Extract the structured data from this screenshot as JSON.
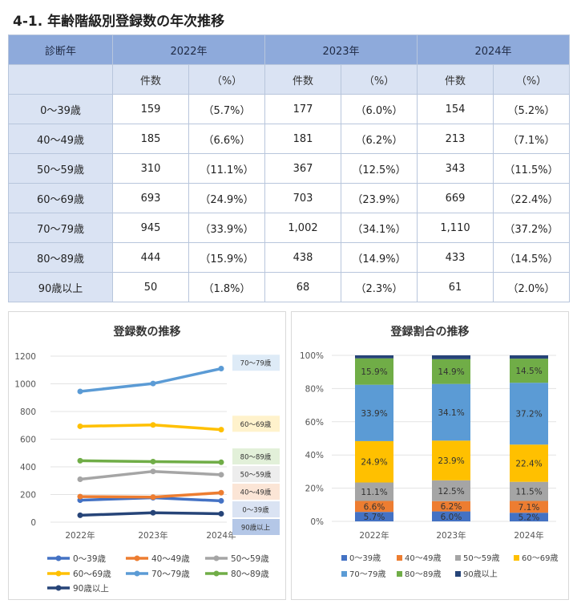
{
  "title": "4-1.  年齢階級別登録数の年次推移",
  "table": {
    "corner_label": "診断年",
    "years": [
      "2022年",
      "2023年",
      "2024年"
    ],
    "count_label": "件数",
    "pct_label": "（%）",
    "rows": [
      {
        "label": "0～39歳",
        "cells": [
          [
            "159",
            "（5.7%）"
          ],
          [
            "177",
            "（6.0%）"
          ],
          [
            "154",
            "（5.2%）"
          ]
        ]
      },
      {
        "label": "40～49歳",
        "cells": [
          [
            "185",
            "（6.6%）"
          ],
          [
            "181",
            "（6.2%）"
          ],
          [
            "213",
            "（7.1%）"
          ]
        ]
      },
      {
        "label": "50～59歳",
        "cells": [
          [
            "310",
            "（11.1%）"
          ],
          [
            "367",
            "（12.5%）"
          ],
          [
            "343",
            "（11.5%）"
          ]
        ]
      },
      {
        "label": "60～69歳",
        "cells": [
          [
            "693",
            "（24.9%）"
          ],
          [
            "703",
            "（23.9%）"
          ],
          [
            "669",
            "（22.4%）"
          ]
        ]
      },
      {
        "label": "70～79歳",
        "cells": [
          [
            "945",
            "（33.9%）"
          ],
          [
            "1,002",
            "（34.1%）"
          ],
          [
            "1,110",
            "（37.2%）"
          ]
        ]
      },
      {
        "label": "80～89歳",
        "cells": [
          [
            "444",
            "（15.9%）"
          ],
          [
            "438",
            "（14.9%）"
          ],
          [
            "433",
            "（14.5%）"
          ]
        ]
      },
      {
        "label": "90歳以上",
        "cells": [
          [
            "50",
            "（1.8%）"
          ],
          [
            "68",
            "（2.3%）"
          ],
          [
            "61",
            "（2.0%）"
          ]
        ]
      }
    ]
  },
  "chart_data": [
    {
      "type": "line",
      "title": "登録数の推移",
      "categories": [
        "2022年",
        "2023年",
        "2024年"
      ],
      "yticks": [
        "0",
        "200",
        "400",
        "600",
        "800",
        "1000",
        "1200"
      ],
      "ylim": [
        0,
        1200
      ],
      "series": [
        {
          "name": "0～39歳",
          "values": [
            159,
            177,
            154
          ],
          "color": "#4472c4",
          "end_label": "0～39歳",
          "label_bg": "#dae3f3"
        },
        {
          "name": "40～49歳",
          "values": [
            185,
            181,
            213
          ],
          "color": "#ed7d31",
          "end_label": "40～49歳",
          "label_bg": "#fbe5d6"
        },
        {
          "name": "50～59歳",
          "values": [
            310,
            367,
            343
          ],
          "color": "#a5a5a5",
          "end_label": "50～59歳",
          "label_bg": "#ededed"
        },
        {
          "name": "60～69歳",
          "values": [
            693,
            703,
            669
          ],
          "color": "#ffc000",
          "end_label": "60～69歳",
          "label_bg": "#fff2cc"
        },
        {
          "name": "70～79歳",
          "values": [
            945,
            1002,
            1110
          ],
          "color": "#5b9bd5",
          "end_label": "70～79歳",
          "label_bg": "#deebf7"
        },
        {
          "name": "80～89歳",
          "values": [
            444,
            438,
            433
          ],
          "color": "#70ad47",
          "end_label": "80～89歳",
          "label_bg": "#e2f0d9"
        },
        {
          "name": "90歳以上",
          "values": [
            50,
            68,
            61
          ],
          "color": "#264478",
          "end_label": "90歳以上",
          "label_bg": "#b4c7e7"
        }
      ]
    },
    {
      "type": "stacked-bar",
      "title": "登録割合の推移",
      "categories": [
        "2022年",
        "2023年",
        "2024年"
      ],
      "yticks": [
        "0%",
        "20%",
        "40%",
        "60%",
        "80%",
        "100%"
      ],
      "ylim": [
        0,
        100
      ],
      "series": [
        {
          "name": "0～39歳",
          "values": [
            5.7,
            6.0,
            5.2
          ],
          "labels": [
            "5.7%",
            "6.0%",
            "5.2%"
          ],
          "color": "#4472c4"
        },
        {
          "name": "40～49歳",
          "values": [
            6.6,
            6.2,
            7.1
          ],
          "labels": [
            "6.6%",
            "6.2%",
            "7.1%"
          ],
          "color": "#ed7d31"
        },
        {
          "name": "50～59歳",
          "values": [
            11.1,
            12.5,
            11.5
          ],
          "labels": [
            "11.1%",
            "12.5%",
            "11.5%"
          ],
          "color": "#a5a5a5"
        },
        {
          "name": "60～69歳",
          "values": [
            24.9,
            23.9,
            22.4
          ],
          "labels": [
            "24.9%",
            "23.9%",
            "22.4%"
          ],
          "color": "#ffc000"
        },
        {
          "name": "70～79歳",
          "values": [
            33.9,
            34.1,
            37.2
          ],
          "labels": [
            "33.9%",
            "34.1%",
            "37.2%"
          ],
          "color": "#5b9bd5"
        },
        {
          "name": "80～89歳",
          "values": [
            15.9,
            14.9,
            14.5
          ],
          "labels": [
            "15.9%",
            "14.9%",
            "14.5%"
          ],
          "color": "#70ad47"
        },
        {
          "name": "90歳以上",
          "values": [
            1.8,
            2.3,
            2.0
          ],
          "labels": [
            "",
            "",
            ""
          ],
          "color": "#264478"
        }
      ]
    }
  ]
}
